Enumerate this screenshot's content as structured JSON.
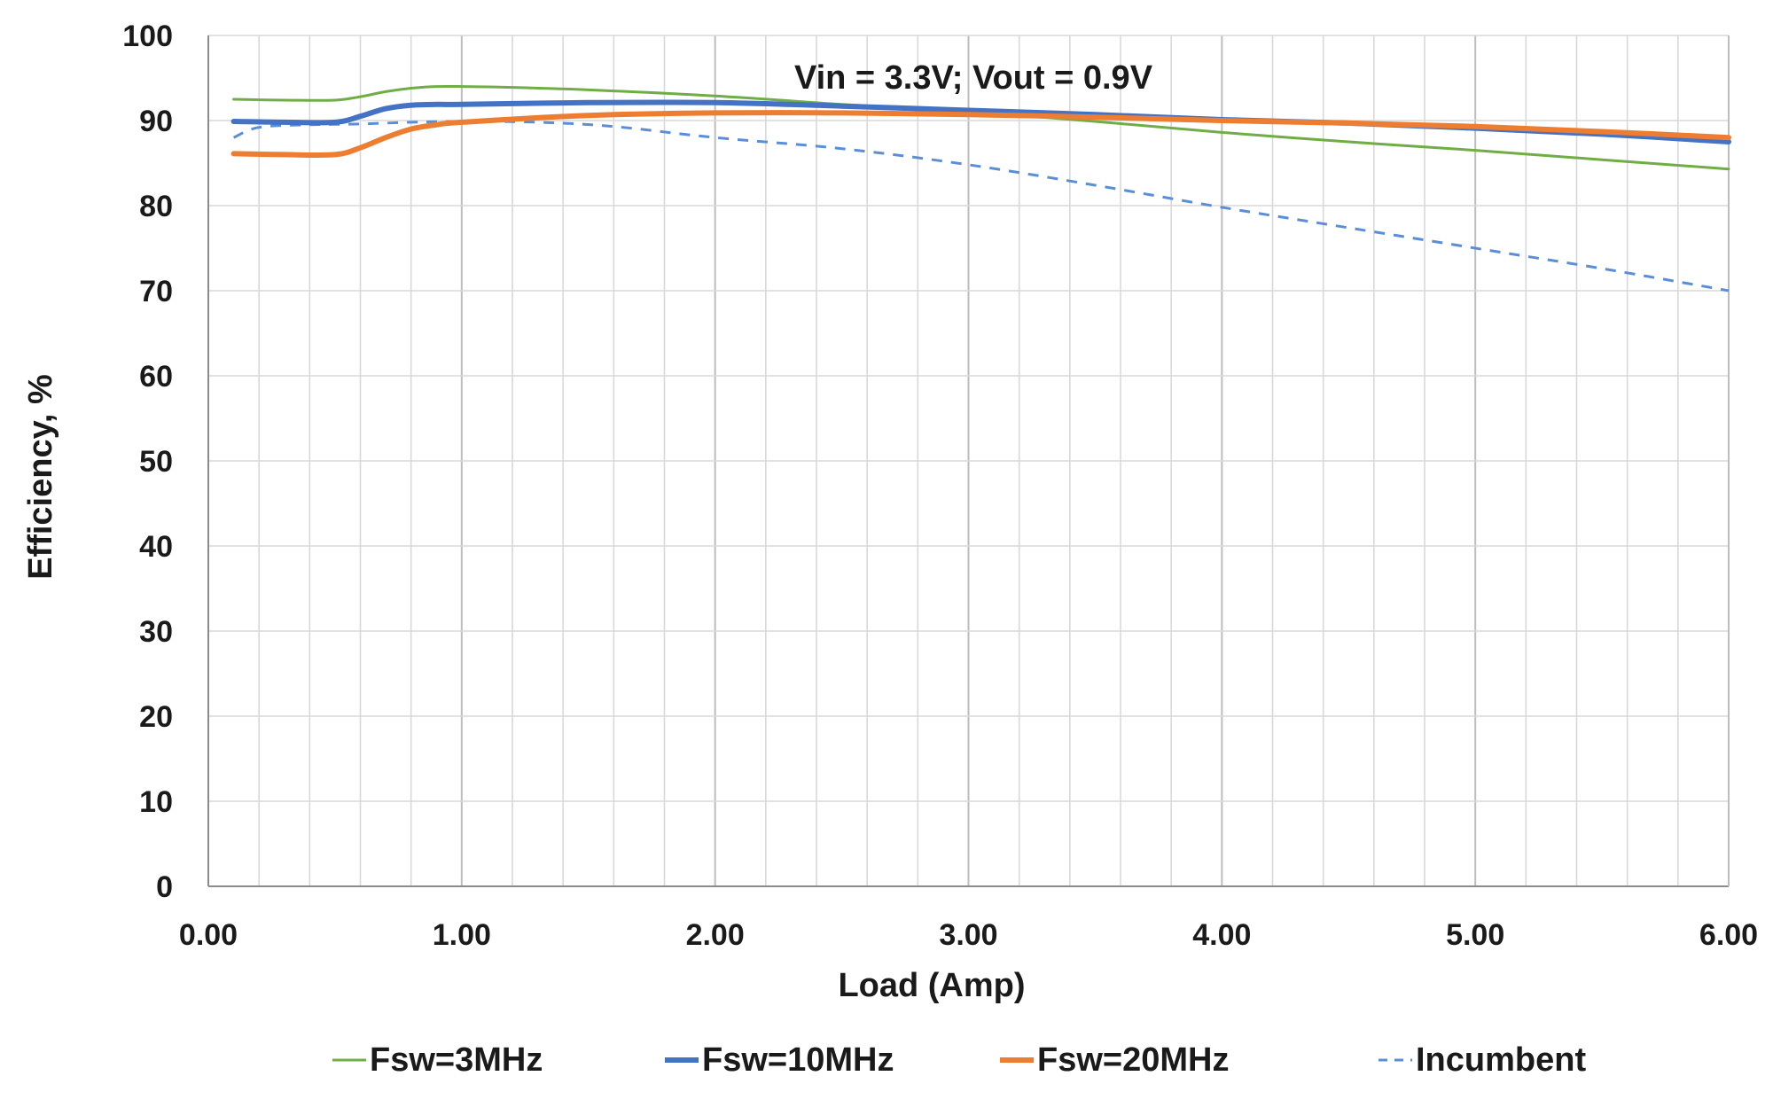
{
  "chart_data": {
    "type": "line",
    "title": "",
    "annotation": "Vin = 3.3V; Vout = 0.9V",
    "xlabel": "Load (Amp)",
    "ylabel": "Efficiency, %",
    "xlim": [
      0,
      6
    ],
    "ylim": [
      0,
      100
    ],
    "x_major_step": 1,
    "x_minor_step": 0.2,
    "y_step": 10,
    "x_tick_labels": [
      "0.00",
      "1.00",
      "2.00",
      "3.00",
      "4.00",
      "5.00",
      "6.00"
    ],
    "y_tick_labels": [
      "0",
      "10",
      "20",
      "30",
      "40",
      "50",
      "60",
      "70",
      "80",
      "90",
      "100"
    ],
    "grid": true,
    "legend_position": "bottom",
    "series": [
      {
        "name": "Fsw=3MHz",
        "color": "#70ad47",
        "style": "solid",
        "width": "thin",
        "x": [
          0.1,
          0.3,
          0.5,
          0.6,
          0.7,
          0.8,
          0.9,
          1.0,
          1.2,
          1.5,
          2.0,
          2.5,
          3.0,
          3.5,
          4.0,
          4.5,
          5.0,
          5.5,
          6.0
        ],
        "y": [
          92.5,
          92.4,
          92.4,
          92.8,
          93.4,
          93.8,
          94.0,
          94.0,
          93.9,
          93.6,
          92.9,
          91.9,
          91.0,
          89.9,
          88.6,
          87.5,
          86.5,
          85.4,
          84.3
        ]
      },
      {
        "name": "Fsw=10MHz",
        "color": "#4472c4",
        "style": "solid",
        "width": "thick",
        "x": [
          0.1,
          0.3,
          0.5,
          0.6,
          0.7,
          0.8,
          0.9,
          1.0,
          1.5,
          2.0,
          2.5,
          3.0,
          3.5,
          4.0,
          4.5,
          5.0,
          5.5,
          6.0
        ],
        "y": [
          89.9,
          89.8,
          89.8,
          90.5,
          91.4,
          91.8,
          91.9,
          91.9,
          92.1,
          92.1,
          91.7,
          91.2,
          90.7,
          90.1,
          89.7,
          89.1,
          88.4,
          87.5
        ]
      },
      {
        "name": "Fsw=20MHz",
        "color": "#ed7d31",
        "style": "solid",
        "width": "thick",
        "x": [
          0.1,
          0.3,
          0.5,
          0.6,
          0.7,
          0.8,
          0.9,
          1.0,
          1.5,
          2.0,
          2.5,
          3.0,
          3.5,
          4.0,
          4.5,
          5.0,
          5.5,
          6.0
        ],
        "y": [
          86.1,
          86.0,
          86.0,
          86.8,
          88.0,
          89.0,
          89.5,
          89.8,
          90.6,
          90.9,
          90.9,
          90.7,
          90.4,
          90.0,
          89.7,
          89.3,
          88.7,
          88.0
        ]
      },
      {
        "name": "Incumbent",
        "color": "#5b8ed6",
        "style": "dashed",
        "width": "thin",
        "x": [
          0.1,
          0.2,
          0.4,
          0.6,
          0.8,
          1.0,
          1.3,
          1.6,
          2.0,
          2.5,
          3.0,
          3.5,
          4.0,
          4.5,
          5.0,
          5.5,
          6.0
        ],
        "y": [
          88.0,
          89.2,
          89.5,
          89.6,
          89.8,
          89.9,
          89.8,
          89.3,
          88.0,
          86.7,
          84.8,
          82.4,
          79.8,
          77.4,
          75.0,
          72.6,
          70.0
        ]
      }
    ]
  }
}
